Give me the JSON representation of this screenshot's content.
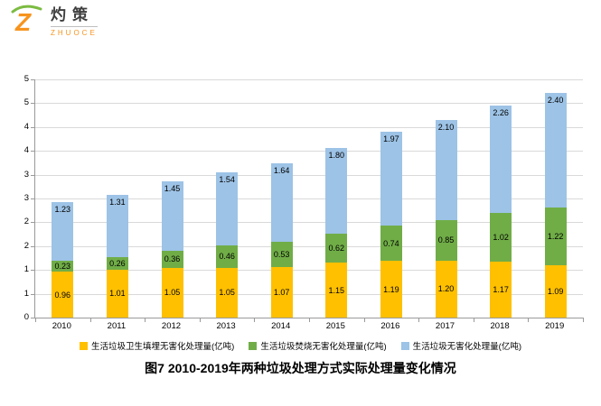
{
  "logo": {
    "brand": "灼策",
    "subtitle": "ZHUOCE"
  },
  "chart_data": {
    "type": "bar",
    "stacked": true,
    "categories": [
      "2010",
      "2011",
      "2012",
      "2013",
      "2014",
      "2015",
      "2016",
      "2017",
      "2018",
      "2019"
    ],
    "series": [
      {
        "name": "生活垃圾卫生填埋无害化处理量(亿吨)",
        "color": "#FFC000",
        "values": [
          0.96,
          1.01,
          1.05,
          1.05,
          1.07,
          1.15,
          1.19,
          1.2,
          1.17,
          1.09
        ]
      },
      {
        "name": "生活垃圾焚烧无害化处理量(亿吨)",
        "color": "#70AD47",
        "values": [
          0.23,
          0.26,
          0.36,
          0.46,
          0.53,
          0.62,
          0.74,
          0.85,
          1.02,
          1.22
        ]
      },
      {
        "name": "生活垃圾无害化处理量(亿吨)",
        "color": "#9DC3E6",
        "values": [
          1.23,
          1.31,
          1.45,
          1.54,
          1.64,
          1.8,
          1.97,
          2.1,
          2.26,
          2.4
        ]
      }
    ],
    "ylim": [
      0,
      5
    ],
    "ytick_step": 0.5,
    "ytick_labels_bottom_to_top": [
      "0",
      "1",
      "1",
      "2",
      "2",
      "3",
      "3",
      "4",
      "4",
      "5",
      "5"
    ],
    "grid": true,
    "legend_position": "bottom",
    "value_label_format": "2dp"
  },
  "caption": "图7  2010-2019年两种垃圾处理方式实际处理量变化情况",
  "colors": {
    "logo_orange": "#F7941E",
    "logo_green": "#7CBB42",
    "grid": "#D9D9D9",
    "axis": "#9A9A9A"
  }
}
